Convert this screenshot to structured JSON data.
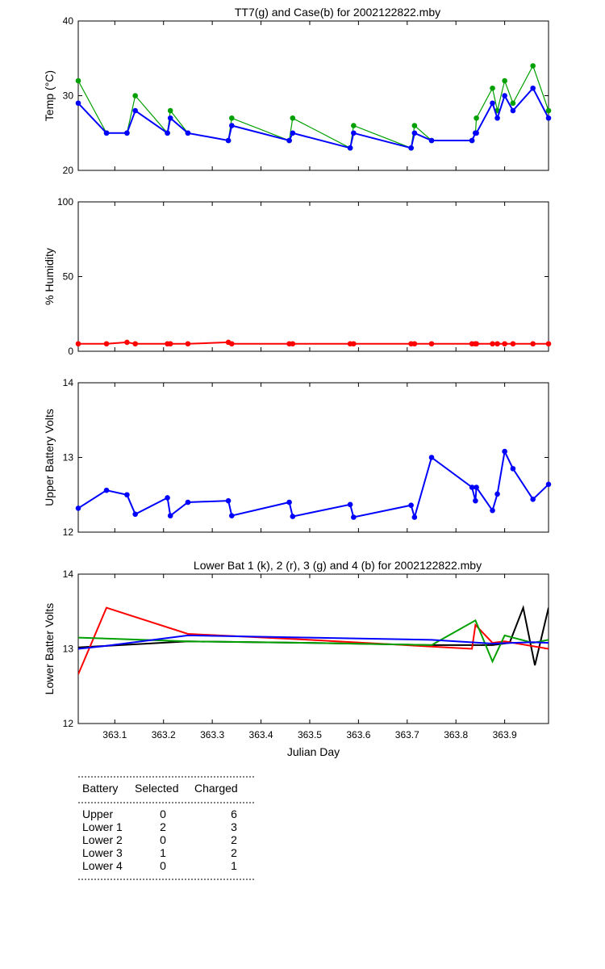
{
  "chart_data": [
    {
      "type": "line",
      "title": "TT7(g) and Case(b) for 2002122822.mby",
      "xlabel": "",
      "ylabel": "Temp  (°C)",
      "xlim": [
        363.025,
        363.99
      ],
      "ylim": [
        20,
        40
      ],
      "yticks": [
        20,
        30,
        40
      ],
      "x": [
        363.025,
        363.083,
        363.125,
        363.142,
        363.208,
        363.214,
        363.25,
        363.333,
        363.34,
        363.458,
        363.465,
        363.583,
        363.59,
        363.708,
        363.715,
        363.75,
        363.833,
        363.84,
        363.842,
        363.875,
        363.885,
        363.9,
        363.917,
        363.958,
        363.99
      ],
      "series": [
        {
          "name": "TT7",
          "color": "#00a000",
          "values": [
            32,
            25,
            25,
            30,
            25,
            28,
            25,
            24,
            27,
            24,
            27,
            23,
            26,
            23,
            26,
            24,
            24,
            25,
            27,
            31,
            28,
            32,
            29,
            34,
            28
          ]
        },
        {
          "name": "Case",
          "color": "#0000ff",
          "values": [
            29,
            25,
            25,
            28,
            25,
            27,
            25,
            24,
            26,
            24,
            25,
            23,
            25,
            23,
            25,
            24,
            24,
            25,
            25,
            29,
            27,
            30,
            28,
            31,
            27
          ]
        }
      ]
    },
    {
      "type": "line",
      "title": "",
      "xlabel": "",
      "ylabel": "% Humidity",
      "xlim": [
        363.025,
        363.99
      ],
      "ylim": [
        0,
        100
      ],
      "yticks": [
        0,
        50,
        100
      ],
      "x": [
        363.025,
        363.083,
        363.125,
        363.142,
        363.208,
        363.214,
        363.25,
        363.333,
        363.34,
        363.458,
        363.465,
        363.583,
        363.59,
        363.708,
        363.715,
        363.75,
        363.833,
        363.84,
        363.842,
        363.875,
        363.885,
        363.9,
        363.917,
        363.958,
        363.99
      ],
      "series": [
        {
          "name": "",
          "color": "#ff0000",
          "values": [
            5,
            5,
            6,
            5,
            5,
            5,
            5,
            6,
            5,
            5,
            5,
            5,
            5,
            5,
            5,
            5,
            5,
            5,
            5,
            5,
            5,
            5,
            5,
            5,
            5
          ]
        }
      ]
    },
    {
      "type": "line",
      "title": "",
      "xlabel": "",
      "ylabel": "Upper Battery Volts",
      "xlim": [
        363.025,
        363.99
      ],
      "ylim": [
        12,
        14
      ],
      "yticks": [
        12,
        13,
        14
      ],
      "x": [
        363.025,
        363.083,
        363.125,
        363.142,
        363.208,
        363.214,
        363.25,
        363.333,
        363.34,
        363.458,
        363.465,
        363.583,
        363.59,
        363.708,
        363.715,
        363.75,
        363.833,
        363.84,
        363.842,
        363.875,
        363.885,
        363.9,
        363.917,
        363.958,
        363.99
      ],
      "series": [
        {
          "name": "",
          "color": "#0000ff",
          "values": [
            12.32,
            12.56,
            12.5,
            12.24,
            12.46,
            12.22,
            12.4,
            12.42,
            12.22,
            12.4,
            12.21,
            12.37,
            12.2,
            12.36,
            12.2,
            13.0,
            12.6,
            12.42,
            12.6,
            12.29,
            12.51,
            13.08,
            12.85,
            12.44,
            12.64
          ]
        }
      ]
    },
    {
      "type": "line",
      "title": "Lower Bat 1 (k), 2 (r), 3 (g) and 4 (b) for 2002122822.mby",
      "xlabel": "Julian Day",
      "ylabel": "Lower Batter Volts",
      "xlim": [
        363.025,
        363.99
      ],
      "ylim": [
        12,
        14
      ],
      "yticks": [
        12,
        13,
        14
      ],
      "xticks": [
        "363.1",
        "363.2",
        "363.3",
        "363.4",
        "363.5",
        "363.6",
        "363.7",
        "363.8",
        "363.9"
      ],
      "series": [
        {
          "name": "1",
          "color": "#000000",
          "x": [
            363.025,
            363.25,
            363.5,
            363.75,
            363.875,
            363.91,
            363.938,
            363.962,
            363.99
          ],
          "values": [
            13.02,
            13.1,
            13.08,
            13.05,
            13.05,
            13.08,
            13.55,
            12.78,
            13.55
          ]
        },
        {
          "name": "2",
          "color": "#ff0000",
          "x": [
            363.025,
            363.083,
            363.25,
            363.5,
            363.833,
            363.84,
            363.875,
            363.9,
            363.99
          ],
          "values": [
            12.66,
            13.55,
            13.2,
            13.12,
            13.0,
            13.32,
            13.08,
            13.1,
            13.0
          ]
        },
        {
          "name": "3",
          "color": "#00a000",
          "x": [
            363.025,
            363.25,
            363.5,
            363.75,
            363.84,
            363.875,
            363.9,
            363.958,
            363.99
          ],
          "values": [
            13.15,
            13.1,
            13.08,
            13.05,
            13.38,
            12.83,
            13.18,
            13.08,
            13.12
          ]
        },
        {
          "name": "4",
          "color": "#0000ff",
          "x": [
            363.025,
            363.083,
            363.25,
            363.5,
            363.75,
            363.875,
            363.958,
            363.99
          ],
          "values": [
            13.0,
            13.04,
            13.18,
            13.15,
            13.12,
            13.07,
            13.09,
            13.08
          ]
        }
      ]
    }
  ],
  "table": {
    "headers": [
      "Battery",
      "Selected",
      "Charged"
    ],
    "rows": [
      [
        "Upper",
        "0",
        "6"
      ],
      [
        "Lower 1",
        "2",
        "3"
      ],
      [
        "Lower 2",
        "0",
        "2"
      ],
      [
        "Lower 3",
        "1",
        "2"
      ],
      [
        "Lower 4",
        "0",
        "1"
      ]
    ]
  }
}
